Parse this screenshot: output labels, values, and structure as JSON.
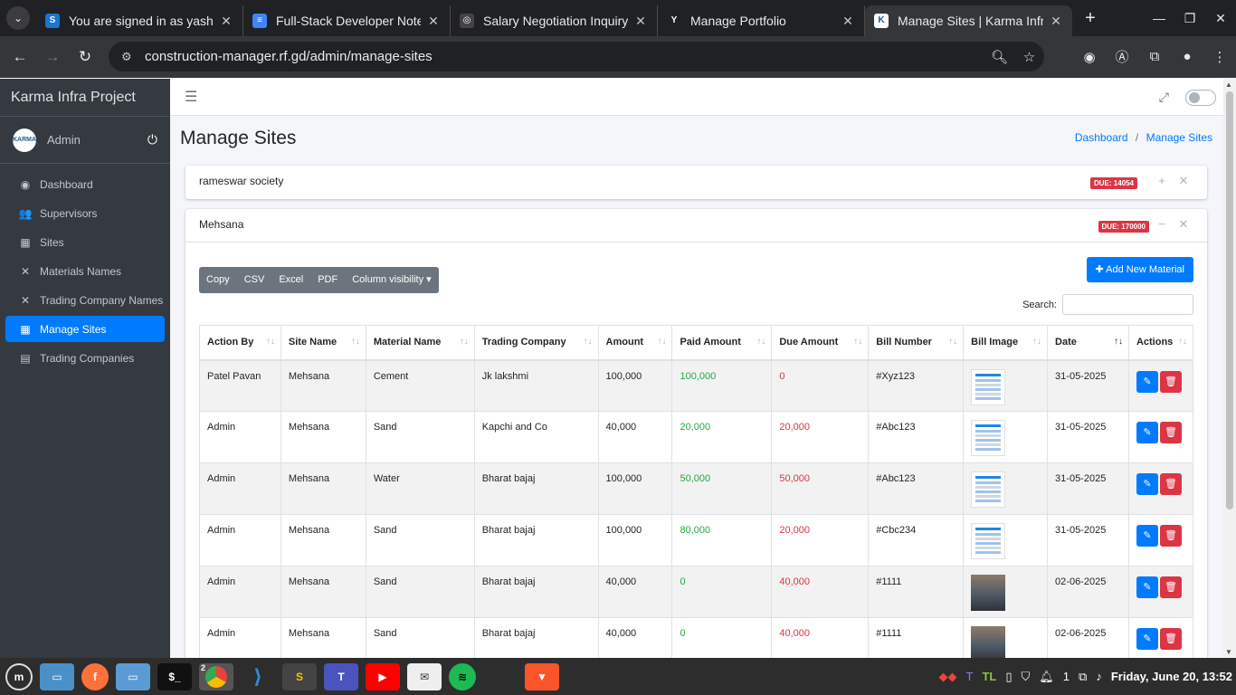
{
  "browser": {
    "tabs": [
      {
        "title": "You are signed in as yashg",
        "fav": "S",
        "favColor": "#1976d2"
      },
      {
        "title": "Full-Stack Developer Notes",
        "fav": "≡",
        "favColor": "#4285f4"
      },
      {
        "title": "Salary Negotiation Inquiry",
        "fav": "◎",
        "favColor": "#444"
      },
      {
        "title": "Manage Portfolio",
        "fav": "Y",
        "favColor": "#202124"
      },
      {
        "title": "Manage Sites | Karma Infra",
        "fav": "K",
        "favColor": "#fff"
      }
    ],
    "url": "construction-manager.rf.gd/admin/manage-sites"
  },
  "sidebar": {
    "brand": "Karma Infra Project",
    "user": "Admin",
    "avatar_text": "KARMA",
    "items": [
      {
        "label": "Dashboard",
        "icon": "◉"
      },
      {
        "label": "Supervisors",
        "icon": "👥"
      },
      {
        "label": "Sites",
        "icon": "▦"
      },
      {
        "label": "Materials Names",
        "icon": "✕"
      },
      {
        "label": "Trading Company Names",
        "icon": "✕"
      },
      {
        "label": "Manage Sites",
        "icon": "▦"
      },
      {
        "label": "Trading Companies",
        "icon": "▤"
      }
    ]
  },
  "page": {
    "title": "Manage Sites",
    "breadcrumb": [
      "Dashboard",
      "Manage Sites"
    ]
  },
  "cards": [
    {
      "title": "rameswar society",
      "due": "DUE: 14054",
      "toggle": "+"
    },
    {
      "title": "Mehsana",
      "due": "DUE: 170000",
      "toggle": "−"
    }
  ],
  "toolbar": {
    "buttons": [
      "Copy",
      "CSV",
      "Excel",
      "PDF",
      "Column visibility ▾"
    ],
    "add_label": "Add New Material",
    "search_label": "Search:"
  },
  "table": {
    "headers": [
      "Action By",
      "Site Name",
      "Material Name",
      "Trading Company",
      "Amount",
      "Paid Amount",
      "Due Amount",
      "Bill Number",
      "Bill Image",
      "Date",
      "Actions"
    ],
    "rows": [
      {
        "by": "Patel Pavan",
        "site": "Mehsana",
        "material": "Cement",
        "company": "Jk lakshmi",
        "amount": "100,000",
        "paid": "100,000",
        "due": "0",
        "bill": "#Xyz123",
        "img": "doc",
        "date": "31-05-2025"
      },
      {
        "by": "Admin",
        "site": "Mehsana",
        "material": "Sand",
        "company": "Kapchi and Co",
        "amount": "40,000",
        "paid": "20,000",
        "due": "20,000",
        "bill": "#Abc123",
        "img": "doc",
        "date": "31-05-2025"
      },
      {
        "by": "Admin",
        "site": "Mehsana",
        "material": "Water",
        "company": "Bharat bajaj",
        "amount": "100,000",
        "paid": "50,000",
        "due": "50,000",
        "bill": "#Abc123",
        "img": "doc",
        "date": "31-05-2025"
      },
      {
        "by": "Admin",
        "site": "Mehsana",
        "material": "Sand",
        "company": "Bharat bajaj",
        "amount": "100,000",
        "paid": "80,000",
        "due": "20,000",
        "bill": "#Cbc234",
        "img": "doc",
        "date": "31-05-2025"
      },
      {
        "by": "Admin",
        "site": "Mehsana",
        "material": "Sand",
        "company": "Bharat bajaj",
        "amount": "40,000",
        "paid": "0",
        "due": "40,000",
        "bill": "#1111",
        "img": "photo",
        "date": "02-06-2025"
      },
      {
        "by": "Admin",
        "site": "Mehsana",
        "material": "Sand",
        "company": "Bharat bajaj",
        "amount": "40,000",
        "paid": "0",
        "due": "40,000",
        "bill": "#1111",
        "img": "photo",
        "date": "02-06-2025"
      }
    ]
  },
  "taskbar": {
    "clock": "Friday, June 20, 13:52",
    "chrome_badge": "2",
    "tray_count": "1"
  }
}
